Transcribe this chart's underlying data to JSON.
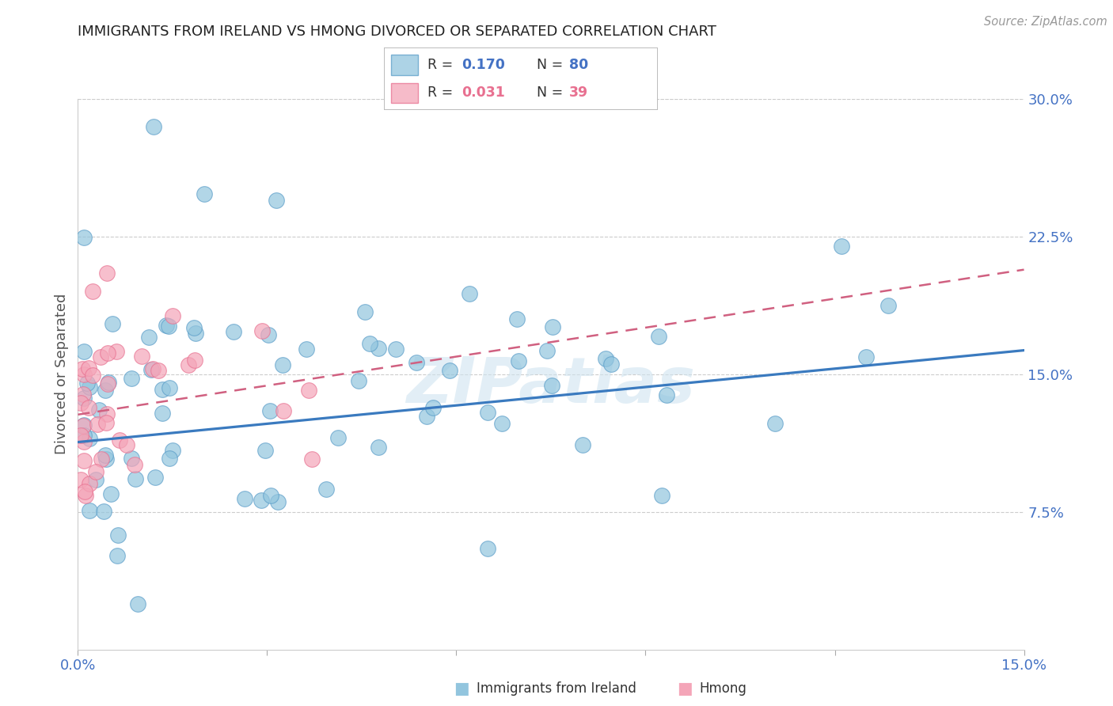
{
  "title": "IMMIGRANTS FROM IRELAND VS HMONG DIVORCED OR SEPARATED CORRELATION CHART",
  "source": "Source: ZipAtlas.com",
  "ylabel": "Divorced or Separated",
  "xmin": 0.0,
  "xmax": 0.15,
  "ymin": 0.0,
  "ymax": 0.3,
  "yticks_right": [
    0.075,
    0.15,
    0.225,
    0.3
  ],
  "ytick_labels_right": [
    "7.5%",
    "15.0%",
    "22.5%",
    "30.0%"
  ],
  "legend_r1": "0.170",
  "legend_n1": "80",
  "legend_r2": "0.031",
  "legend_n2": "39",
  "color_ireland": "#92c5de",
  "color_hmong": "#f4a5b8",
  "color_ireland_edge": "#5a9dc8",
  "color_hmong_edge": "#e87090",
  "color_ireland_line": "#3a7abf",
  "color_hmong_line": "#d06080",
  "watermark": "ZIPatlas",
  "ireland_trendline_x": [
    0.0,
    0.15
  ],
  "ireland_trendline_y": [
    0.113,
    0.163
  ],
  "hmong_trendline_x": [
    0.0,
    0.038
  ],
  "hmong_trendline_y": [
    0.128,
    0.148
  ],
  "bg_color": "#ffffff",
  "grid_color": "#cccccc",
  "title_color": "#222222",
  "tick_label_color": "#4472c4",
  "axis_tick_color": "#4472c4",
  "legend_label_color": "#4472c4",
  "bottom_legend_label": [
    "Immigrants from Ireland",
    "Hmong"
  ]
}
